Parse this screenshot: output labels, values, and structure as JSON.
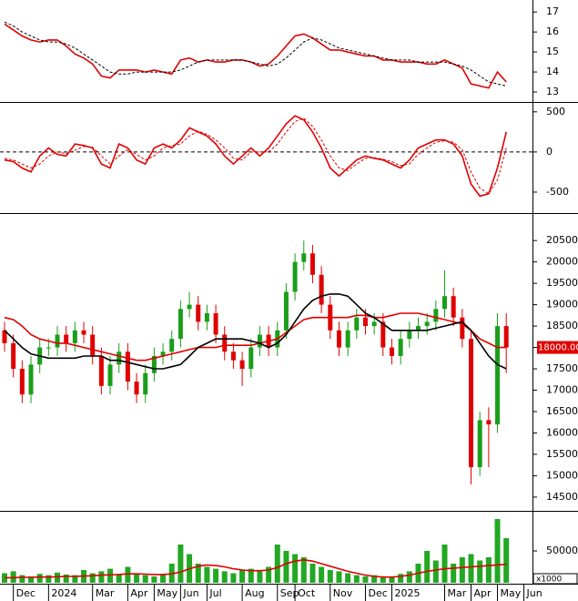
{
  "chart_data": [
    {
      "type": "line",
      "ylim": [
        12.5,
        17.6
      ],
      "yticks": [
        13,
        14,
        15,
        16,
        17
      ],
      "series": [
        {
          "color": "#e00000",
          "values": [
            16.4,
            16.1,
            15.8,
            15.6,
            15.5,
            15.6,
            15.6,
            15.3,
            14.9,
            14.7,
            14.4,
            13.8,
            13.7,
            14.1,
            14.1,
            14.1,
            14.0,
            14.1,
            14.0,
            13.9,
            14.6,
            14.7,
            14.5,
            14.6,
            14.5,
            14.5,
            14.6,
            14.6,
            14.5,
            14.3,
            14.4,
            14.8,
            15.3,
            15.8,
            15.9,
            15.7,
            15.4,
            15.1,
            15.1,
            15.0,
            14.9,
            14.8,
            14.8,
            14.6,
            14.6,
            14.5,
            14.5,
            14.5,
            14.4,
            14.4,
            14.6,
            14.4,
            14.2,
            13.4,
            13.3,
            13.2,
            14.0,
            13.5,
            null,
            null
          ]
        },
        {
          "color": "#000000",
          "dashed": true,
          "values": [
            16.5,
            16.3,
            16.0,
            15.8,
            15.6,
            15.5,
            15.5,
            15.4,
            15.2,
            14.9,
            14.6,
            14.3,
            14.0,
            13.9,
            13.9,
            14.0,
            14.0,
            14.0,
            14.0,
            14.0,
            14.1,
            14.3,
            14.5,
            14.6,
            14.6,
            14.6,
            14.6,
            14.6,
            14.5,
            14.4,
            14.3,
            14.4,
            14.7,
            15.1,
            15.5,
            15.7,
            15.6,
            15.4,
            15.2,
            15.1,
            15.0,
            14.9,
            14.8,
            14.7,
            14.6,
            14.6,
            14.6,
            14.5,
            14.5,
            14.5,
            14.5,
            14.4,
            14.3,
            14.1,
            13.8,
            13.5,
            13.4,
            13.3,
            null,
            null
          ]
        }
      ]
    },
    {
      "type": "line",
      "ylim": [
        -750,
        600
      ],
      "yticks": [
        500,
        0,
        -500
      ],
      "zero_line": true,
      "series": [
        {
          "color": "#e00000",
          "values": [
            -100,
            -120,
            -200,
            -250,
            -50,
            50,
            -30,
            -50,
            100,
            80,
            50,
            -150,
            -200,
            100,
            50,
            -100,
            -150,
            50,
            100,
            50,
            150,
            300,
            250,
            200,
            100,
            -50,
            -150,
            -50,
            50,
            -50,
            50,
            200,
            350,
            450,
            400,
            250,
            50,
            -200,
            -300,
            -200,
            -100,
            -50,
            -80,
            -100,
            -150,
            -200,
            -100,
            50,
            100,
            150,
            150,
            100,
            -50,
            -400,
            -550,
            -520,
            -200,
            250,
            null,
            null
          ]
        },
        {
          "color": "#e00000",
          "dashed": true,
          "values": [
            -80,
            -100,
            -150,
            -200,
            -150,
            -50,
            0,
            -20,
            20,
            70,
            60,
            -50,
            -150,
            -50,
            30,
            -30,
            -100,
            -50,
            50,
            80,
            100,
            200,
            260,
            220,
            150,
            50,
            -80,
            -100,
            0,
            0,
            0,
            100,
            250,
            380,
            420,
            320,
            150,
            -50,
            -200,
            -230,
            -150,
            -80,
            -70,
            -90,
            -120,
            -170,
            -150,
            -30,
            50,
            120,
            140,
            120,
            30,
            -250,
            -450,
            -520,
            -350,
            50,
            null,
            null
          ]
        }
      ]
    },
    {
      "type": "candlestick",
      "ylim": [
        14200,
        21100
      ],
      "yticks": [
        14500,
        15000,
        15500,
        16000,
        16500,
        17000,
        17500,
        18000,
        18500,
        19000,
        19500,
        20000,
        20500
      ],
      "up_color": "#1a9e1a",
      "down_color": "#e00000",
      "open": [
        18400,
        18100,
        17500,
        16900,
        17600,
        18000,
        18000,
        18300,
        18100,
        18400,
        18300,
        17800,
        17100,
        17600,
        17900,
        17200,
        16900,
        17400,
        17800,
        17900,
        18200,
        18900,
        19000,
        18600,
        18800,
        18300,
        17900,
        17700,
        17500,
        18000,
        18300,
        18000,
        18400,
        19300,
        20000,
        20200,
        19700,
        19000,
        18400,
        18000,
        18400,
        18700,
        18500,
        18600,
        18000,
        17800,
        18200,
        18400,
        18500,
        18600,
        18900,
        19200,
        18700,
        18200,
        15200,
        16300,
        16200,
        18500,
        null,
        null
      ],
      "high": [
        18600,
        18300,
        17700,
        17800,
        18200,
        18200,
        18500,
        18500,
        18600,
        18600,
        18500,
        18000,
        17800,
        18100,
        18100,
        17400,
        17600,
        18000,
        18100,
        18400,
        19100,
        19300,
        19200,
        19000,
        19000,
        18500,
        18100,
        17900,
        18200,
        18500,
        18500,
        18600,
        19500,
        20200,
        20500,
        20400,
        19900,
        19200,
        18600,
        18600,
        18900,
        18900,
        18800,
        18800,
        18200,
        18400,
        18600,
        18700,
        18800,
        19100,
        19800,
        19400,
        18900,
        18400,
        16500,
        16600,
        18800,
        18800,
        null,
        null
      ],
      "low": [
        17900,
        17300,
        16700,
        16700,
        17400,
        17800,
        17800,
        17900,
        17900,
        18100,
        17600,
        16900,
        16900,
        17400,
        17000,
        16700,
        16700,
        17200,
        17600,
        17700,
        18000,
        18700,
        18400,
        18400,
        18100,
        17700,
        17500,
        17100,
        17300,
        17800,
        17800,
        17800,
        18200,
        19100,
        19800,
        19500,
        18800,
        18200,
        17800,
        17800,
        18200,
        18300,
        18300,
        17800,
        17600,
        17600,
        18000,
        18200,
        18300,
        18400,
        18700,
        18500,
        18000,
        14800,
        15000,
        15200,
        16000,
        17400,
        null,
        null
      ],
      "close": [
        18100,
        17500,
        16900,
        17600,
        18000,
        18000,
        18300,
        18100,
        18400,
        18300,
        17800,
        17100,
        17600,
        17900,
        17200,
        16900,
        17400,
        17800,
        17900,
        18200,
        18900,
        19000,
        18600,
        18800,
        18300,
        17900,
        17700,
        17500,
        18000,
        18300,
        18000,
        18400,
        19300,
        20000,
        20200,
        19700,
        19000,
        18400,
        18000,
        18400,
        18700,
        18500,
        18600,
        18000,
        17800,
        18200,
        18400,
        18500,
        18600,
        18900,
        19200,
        18700,
        18200,
        15200,
        16300,
        16200,
        18500,
        18000,
        null,
        null
      ],
      "series": [
        {
          "color": "#e00000",
          "values": [
            18700,
            18650,
            18500,
            18300,
            18200,
            18150,
            18100,
            18100,
            18050,
            18000,
            17950,
            17900,
            17850,
            17800,
            17750,
            17700,
            17700,
            17750,
            17800,
            17850,
            17900,
            17950,
            18000,
            18000,
            18000,
            18050,
            18050,
            18050,
            18050,
            18100,
            18150,
            18200,
            18350,
            18500,
            18650,
            18700,
            18700,
            18700,
            18700,
            18700,
            18750,
            18750,
            18700,
            18700,
            18750,
            18800,
            18800,
            18800,
            18750,
            18700,
            18650,
            18600,
            18550,
            18400,
            18200,
            18100,
            18000,
            18000,
            null,
            null
          ]
        },
        {
          "color": "#000000",
          "values": [
            18400,
            18200,
            18000,
            17850,
            17800,
            17750,
            17750,
            17750,
            17750,
            17800,
            17800,
            17800,
            17700,
            17700,
            17650,
            17600,
            17550,
            17500,
            17500,
            17550,
            17600,
            17800,
            18000,
            18100,
            18200,
            18200,
            18200,
            18200,
            18150,
            18100,
            18000,
            18100,
            18300,
            18600,
            18900,
            19100,
            19200,
            19250,
            19250,
            19200,
            19000,
            18800,
            18700,
            18550,
            18400,
            18400,
            18400,
            18400,
            18400,
            18450,
            18500,
            18550,
            18600,
            18400,
            18100,
            17800,
            17600,
            17500,
            null,
            null
          ]
        }
      ],
      "price_marker": {
        "value": 18000,
        "label": "18000.00"
      }
    },
    {
      "type": "bar",
      "ylim": [
        0,
        110000
      ],
      "yticks": [
        50000
      ],
      "unit": "x1000",
      "color": "#22a822",
      "categories": [
        null,
        "Dec",
        null,
        null,
        null,
        "2024",
        null,
        null,
        null,
        null,
        "Mar",
        null,
        null,
        null,
        "Apr",
        null,
        null,
        "May",
        null,
        null,
        "Jun",
        null,
        null,
        "Jul",
        null,
        null,
        null,
        "Aug",
        null,
        null,
        null,
        "Sep",
        null,
        "Oct",
        null,
        null,
        null,
        "Nov",
        null,
        null,
        null,
        "Dec",
        null,
        null,
        "2025",
        null,
        null,
        null,
        null,
        null,
        "Mar",
        null,
        null,
        "Apr",
        null,
        null,
        "May",
        null,
        null,
        "Jun"
      ],
      "values": [
        15000,
        18000,
        12000,
        10000,
        14000,
        12000,
        16000,
        13000,
        12000,
        20000,
        15000,
        18000,
        22000,
        14000,
        25000,
        15000,
        12000,
        10000,
        14000,
        30000,
        60000,
        45000,
        30000,
        25000,
        22000,
        18000,
        15000,
        20000,
        22000,
        18000,
        25000,
        60000,
        50000,
        45000,
        40000,
        30000,
        25000,
        20000,
        18000,
        15000,
        12000,
        10000,
        12000,
        8000,
        10000,
        14000,
        18000,
        30000,
        50000,
        35000,
        60000,
        30000,
        40000,
        45000,
        35000,
        40000,
        100000,
        70000,
        null,
        null
      ],
      "series": [
        {
          "color": "#e00000",
          "values": [
            8000,
            8000,
            8500,
            8500,
            9000,
            9000,
            9500,
            10000,
            10000,
            10500,
            11000,
            12000,
            12500,
            13000,
            14000,
            14000,
            13500,
            13000,
            13000,
            14000,
            17000,
            22000,
            26000,
            28000,
            27000,
            25000,
            22000,
            20000,
            19000,
            19000,
            20000,
            24000,
            30000,
            34000,
            36000,
            34000,
            30000,
            26000,
            22000,
            18000,
            15000,
            12000,
            10000,
            9000,
            9000,
            10000,
            12000,
            15000,
            18000,
            20000,
            22000,
            23000,
            24000,
            25000,
            26000,
            27000,
            28000,
            29000,
            null,
            null
          ]
        }
      ]
    }
  ]
}
